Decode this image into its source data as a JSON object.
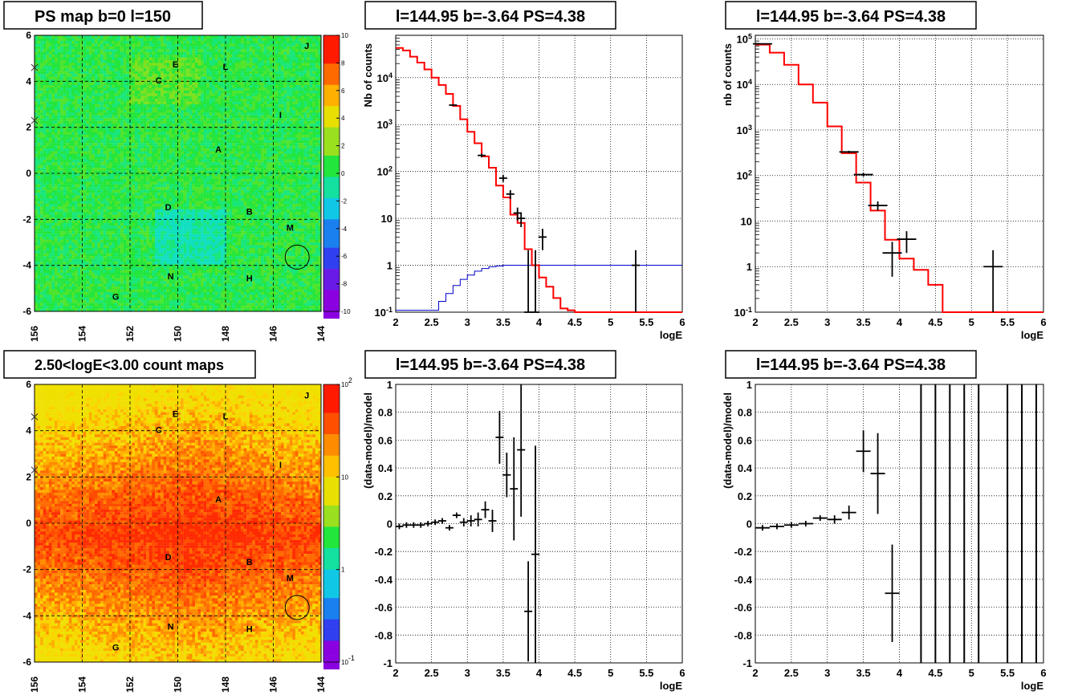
{
  "colors": {
    "data": "#000000",
    "model": "#ff0000",
    "exposure": "#0000cc",
    "grid": "#000000",
    "map_green": "#22e63c",
    "map_orange": "#ff8c00"
  },
  "chart_data": [
    {
      "id": "ps_map",
      "type": "heatmap",
      "title": "PS map b=0 l=150",
      "xlim": [
        156,
        144
      ],
      "ylim": [
        -6,
        6
      ],
      "xticks": [
        "156",
        "154",
        "152",
        "150",
        "148",
        "146",
        "144"
      ],
      "yticks": [
        "-6",
        "-4",
        "-2",
        "0",
        "2",
        "4",
        "6"
      ],
      "colorbar_ticks": [
        "-10",
        "-8",
        "-6",
        "-4",
        "-2",
        "0",
        "2",
        "4",
        "6",
        "8",
        "10"
      ],
      "colorbar_range": [
        -10,
        10
      ],
      "grid": true,
      "sources": [
        {
          "label": "E",
          "l": 150.1,
          "b": 4.6
        },
        {
          "label": "L",
          "l": 148.0,
          "b": 4.5
        },
        {
          "label": "C",
          "l": 150.8,
          "b": 3.9
        },
        {
          "label": "J",
          "l": 144.6,
          "b": 5.4
        },
        {
          "label": "I",
          "l": 145.7,
          "b": 2.4
        },
        {
          "label": "A",
          "l": 148.3,
          "b": 0.9
        },
        {
          "label": "D",
          "l": 150.4,
          "b": -1.6
        },
        {
          "label": "B",
          "l": 147.0,
          "b": -1.8
        },
        {
          "label": "M",
          "l": 145.3,
          "b": -2.5
        },
        {
          "label": "N",
          "l": 150.3,
          "b": -4.6
        },
        {
          "label": "H",
          "l": 147.0,
          "b": -4.7
        },
        {
          "label": "G",
          "l": 152.6,
          "b": -5.5
        }
      ],
      "circle": {
        "l": 145.0,
        "b": -3.64,
        "r": 0.45
      }
    },
    {
      "id": "spectrum_fine",
      "type": "line",
      "title": "l=144.95 b=-3.64 PS=4.38",
      "xlabel": "logE",
      "ylabel": "Nb of counts",
      "xlim": [
        2,
        6
      ],
      "ylim": [
        0.1,
        80000
      ],
      "log_y": true,
      "grid": true,
      "xticks": [
        "2",
        "2.5",
        "3",
        "3.5",
        "4",
        "4.5",
        "5",
        "5.5",
        "6"
      ],
      "yticks": [
        "10^-1",
        "1",
        "10",
        "10^2",
        "10^3",
        "10^4"
      ],
      "model_step": [
        [
          2.0,
          43000
        ],
        [
          2.1,
          38000
        ],
        [
          2.2,
          28000
        ],
        [
          2.3,
          21000
        ],
        [
          2.4,
          15000
        ],
        [
          2.5,
          10000
        ],
        [
          2.6,
          7000
        ],
        [
          2.7,
          4500
        ],
        [
          2.8,
          2500
        ],
        [
          2.9,
          1300
        ],
        [
          3.0,
          700
        ],
        [
          3.1,
          400
        ],
        [
          3.2,
          210
        ],
        [
          3.3,
          120
        ],
        [
          3.4,
          50
        ],
        [
          3.5,
          28
        ],
        [
          3.6,
          12
        ],
        [
          3.7,
          8
        ],
        [
          3.8,
          2.2
        ],
        [
          3.9,
          1.0
        ],
        [
          4.0,
          0.55
        ],
        [
          4.1,
          0.35
        ],
        [
          4.2,
          0.2
        ],
        [
          4.3,
          0.12
        ],
        [
          4.4,
          0.11
        ],
        [
          4.5,
          0.1
        ],
        [
          6.0,
          0.1
        ]
      ],
      "data_points": [
        {
          "x": 2.8,
          "y": 2600,
          "lo": 2500,
          "hi": 2700
        },
        {
          "x": 3.2,
          "y": 220,
          "lo": 200,
          "hi": 240
        },
        {
          "x": 3.5,
          "y": 72,
          "lo": 60,
          "hi": 85
        },
        {
          "x": 3.6,
          "y": 33,
          "lo": 26,
          "hi": 40
        },
        {
          "x": 3.7,
          "y": 13,
          "lo": 9,
          "hi": 17
        },
        {
          "x": 3.75,
          "y": 10,
          "lo": 6.5,
          "hi": 13.5
        },
        {
          "x": 3.85,
          "y": 0.1,
          "lo": 0.1,
          "hi": 2.1
        },
        {
          "x": 3.95,
          "y": 0.1,
          "lo": 0.1,
          "hi": 2.1
        },
        {
          "x": 4.05,
          "y": 4,
          "lo": 2.1,
          "hi": 6
        },
        {
          "x": 5.35,
          "y": 1.0,
          "lo": 0.1,
          "hi": 2.1
        }
      ],
      "exposure_step": [
        [
          2.0,
          0.11
        ],
        [
          2.55,
          0.11
        ],
        [
          2.6,
          0.17
        ],
        [
          2.7,
          0.25
        ],
        [
          2.8,
          0.37
        ],
        [
          2.9,
          0.5
        ],
        [
          3.0,
          0.62
        ],
        [
          3.1,
          0.75
        ],
        [
          3.2,
          0.85
        ],
        [
          3.3,
          0.93
        ],
        [
          3.4,
          0.97
        ],
        [
          3.5,
          1.0
        ],
        [
          6.0,
          1.0
        ]
      ]
    },
    {
      "id": "spectrum_coarse",
      "type": "line",
      "title": "l=144.95 b=-3.64 PS=4.38",
      "xlabel": "logE",
      "ylabel": "nb of counts",
      "xlim": [
        2,
        6
      ],
      "ylim": [
        0.1,
        120000
      ],
      "log_y": true,
      "grid": true,
      "xticks": [
        "2",
        "2.5",
        "3",
        "3.5",
        "4",
        "4.5",
        "5",
        "5.5",
        "6"
      ],
      "yticks": [
        "10^-1",
        "1",
        "10",
        "10^2",
        "10^3",
        "10^4",
        "10^5"
      ],
      "model_step": [
        [
          2.0,
          75000
        ],
        [
          2.2,
          50000
        ],
        [
          2.4,
          27000
        ],
        [
          2.6,
          10000
        ],
        [
          2.8,
          4000
        ],
        [
          3.0,
          1200
        ],
        [
          3.2,
          310
        ],
        [
          3.4,
          70
        ],
        [
          3.6,
          17
        ],
        [
          3.8,
          3.9
        ],
        [
          4.0,
          1.5
        ],
        [
          4.2,
          0.85
        ],
        [
          4.4,
          0.4
        ],
        [
          4.6,
          0.1
        ],
        [
          6.0,
          0.1
        ]
      ],
      "data_points": [
        {
          "x": 2.1,
          "y": 78000,
          "lo": 76000,
          "hi": 80000
        },
        {
          "x": 3.3,
          "y": 330,
          "lo": 310,
          "hi": 350
        },
        {
          "x": 3.5,
          "y": 105,
          "lo": 95,
          "hi": 115
        },
        {
          "x": 3.7,
          "y": 22,
          "lo": 17,
          "hi": 27
        },
        {
          "x": 3.9,
          "y": 2,
          "lo": 0.6,
          "hi": 3.5
        },
        {
          "x": 4.1,
          "y": 4,
          "lo": 2,
          "hi": 6
        },
        {
          "x": 5.3,
          "y": 1,
          "lo": 0.1,
          "hi": 2.3
        }
      ]
    },
    {
      "id": "count_map",
      "type": "heatmap",
      "title": "2.50<logE<3.00 count maps",
      "xlim": [
        156,
        144
      ],
      "ylim": [
        -6,
        6
      ],
      "xticks": [
        "156",
        "154",
        "152",
        "150",
        "148",
        "146",
        "144"
      ],
      "yticks": [
        "-6",
        "-4",
        "-2",
        "0",
        "2",
        "4",
        "6"
      ],
      "colorbar_ticks": [
        "10^-1",
        "1",
        "10",
        "10^2"
      ],
      "colorbar_range": [
        0.1,
        100
      ],
      "grid": true,
      "sources": [
        {
          "label": "E",
          "l": 150.1,
          "b": 4.6
        },
        {
          "label": "L",
          "l": 148.0,
          "b": 4.5
        },
        {
          "label": "C",
          "l": 150.8,
          "b": 3.9
        },
        {
          "label": "J",
          "l": 144.6,
          "b": 5.4
        },
        {
          "label": "I",
          "l": 145.7,
          "b": 2.4
        },
        {
          "label": "A",
          "l": 148.3,
          "b": 0.9
        },
        {
          "label": "D",
          "l": 150.4,
          "b": -1.6
        },
        {
          "label": "B",
          "l": 147.0,
          "b": -1.8
        },
        {
          "label": "M",
          "l": 145.3,
          "b": -2.5
        },
        {
          "label": "N",
          "l": 150.3,
          "b": -4.6
        },
        {
          "label": "H",
          "l": 147.0,
          "b": -4.7
        },
        {
          "label": "G",
          "l": 152.6,
          "b": -5.5
        }
      ],
      "circle": {
        "l": 145.0,
        "b": -3.64,
        "r": 0.45
      }
    },
    {
      "id": "residual_fine",
      "type": "scatter",
      "title": "l=144.95 b=-3.64 PS=4.38",
      "xlabel": "logE",
      "ylabel": "(data-model)/model",
      "xlim": [
        2,
        6
      ],
      "ylim": [
        -1,
        1
      ],
      "grid": true,
      "xticks": [
        "2",
        "2.5",
        "3",
        "3.5",
        "4",
        "4.5",
        "5",
        "5.5",
        "6"
      ],
      "yticks": [
        "-1",
        "-0.8",
        "-0.6",
        "-0.4",
        "-0.2",
        "0",
        "0.2",
        "0.4",
        "0.6",
        "0.8",
        "1"
      ],
      "points": [
        {
          "x": 2.05,
          "y": -0.02,
          "e": 0.02
        },
        {
          "x": 2.15,
          "y": -0.01,
          "e": 0.02
        },
        {
          "x": 2.25,
          "y": -0.01,
          "e": 0.02
        },
        {
          "x": 2.35,
          "y": -0.01,
          "e": 0.02
        },
        {
          "x": 2.45,
          "y": 0.0,
          "e": 0.02
        },
        {
          "x": 2.55,
          "y": 0.01,
          "e": 0.02
        },
        {
          "x": 2.65,
          "y": 0.02,
          "e": 0.02
        },
        {
          "x": 2.75,
          "y": -0.03,
          "e": 0.02
        },
        {
          "x": 2.85,
          "y": 0.06,
          "e": 0.02
        },
        {
          "x": 2.95,
          "y": 0.01,
          "e": 0.03
        },
        {
          "x": 3.05,
          "y": 0.02,
          "e": 0.04
        },
        {
          "x": 3.15,
          "y": 0.03,
          "e": 0.05
        },
        {
          "x": 3.25,
          "y": 0.1,
          "e": 0.06
        },
        {
          "x": 3.35,
          "y": 0.02,
          "e": 0.08
        },
        {
          "x": 3.45,
          "y": 0.62,
          "e": 0.19
        },
        {
          "x": 3.55,
          "y": 0.35,
          "e": 0.16
        },
        {
          "x": 3.65,
          "y": 0.25,
          "e": 0.37
        },
        {
          "x": 3.75,
          "y": 0.53,
          "e": 0.48
        },
        {
          "x": 3.85,
          "y": -0.63,
          "e": 0.36
        },
        {
          "x": 3.95,
          "y": -0.22,
          "e": 0.78
        }
      ]
    },
    {
      "id": "residual_coarse",
      "type": "scatter",
      "title": "l=144.95 b=-3.64 PS=4.38",
      "xlabel": "logE",
      "ylabel": "(data-model)/model",
      "xlim": [
        2,
        6
      ],
      "ylim": [
        -1,
        1
      ],
      "grid": true,
      "xticks": [
        "2",
        "2.5",
        "3",
        "3.5",
        "4",
        "4.5",
        "5",
        "5.5",
        "6"
      ],
      "yticks": [
        "-1",
        "-0.8",
        "-0.6",
        "-0.4",
        "-0.2",
        "0",
        "0.2",
        "0.4",
        "0.6",
        "0.8",
        "1"
      ],
      "points": [
        {
          "x": 2.1,
          "y": -0.03,
          "e": 0.02
        },
        {
          "x": 2.3,
          "y": -0.02,
          "e": 0.02
        },
        {
          "x": 2.5,
          "y": -0.01,
          "e": 0.02
        },
        {
          "x": 2.7,
          "y": 0.0,
          "e": 0.02
        },
        {
          "x": 2.9,
          "y": 0.04,
          "e": 0.02
        },
        {
          "x": 3.1,
          "y": 0.03,
          "e": 0.03
        },
        {
          "x": 3.3,
          "y": 0.08,
          "e": 0.05
        },
        {
          "x": 3.5,
          "y": 0.52,
          "e": 0.15
        },
        {
          "x": 3.7,
          "y": 0.36,
          "e": 0.29
        },
        {
          "x": 3.9,
          "y": -0.5,
          "e": 0.35
        }
      ],
      "full_bars_x": [
        4.3,
        4.5,
        4.7,
        4.9,
        5.1,
        5.5,
        5.7,
        5.9
      ]
    }
  ]
}
